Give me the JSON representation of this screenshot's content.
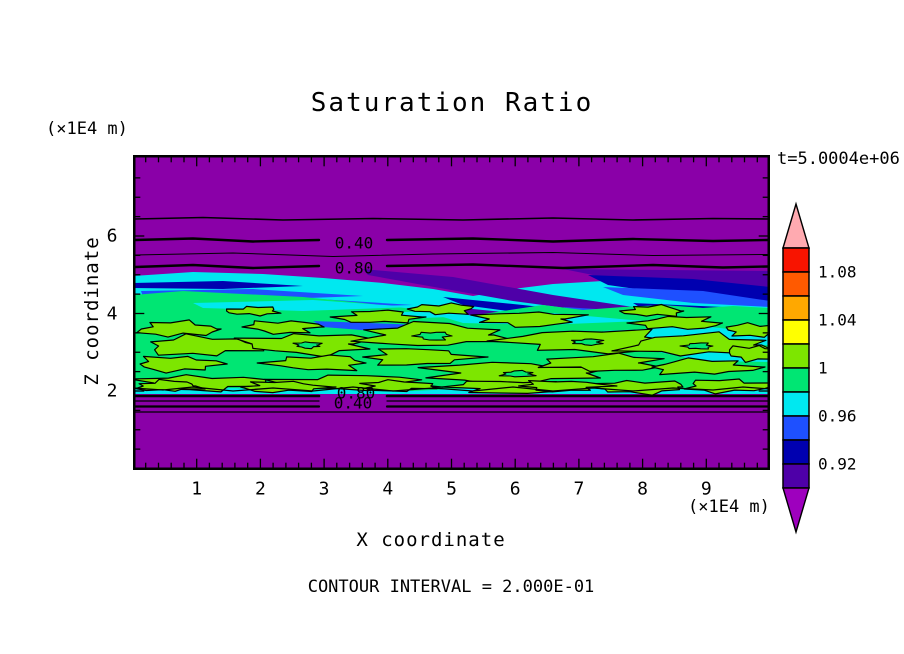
{
  "title": "Saturation Ratio",
  "annotations": {
    "y_axis_units": "(×1E4 m)",
    "x_axis_units": "(×1E4 m)",
    "time_label": "t=5.0004e+06",
    "contour_interval": "CONTOUR INTERVAL = 2.000E-01"
  },
  "x_axis": {
    "label": "X coordinate",
    "ticks": [
      1,
      2,
      3,
      4,
      5,
      6,
      7,
      8,
      9
    ],
    "range": [
      0,
      10
    ]
  },
  "y_axis": {
    "label": "Z coordinate",
    "ticks": [
      2,
      4,
      6
    ],
    "range": [
      0,
      8.1
    ]
  },
  "plot_contour_labels": {
    "upper": [
      {
        "text": "0.40"
      },
      {
        "text": "0.80"
      }
    ],
    "lower": [
      {
        "text": "0.80"
      },
      {
        "text": "0.40"
      }
    ]
  },
  "colorbar": {
    "over_color": "#FFAAB0",
    "under_color": "#9E00BE",
    "segments": [
      {
        "color": "#F81400"
      },
      {
        "color": "#FF5A00"
      },
      {
        "color": "#FFA800"
      },
      {
        "color": "#FFFF00"
      },
      {
        "color": "#7DE600"
      },
      {
        "color": "#00E673"
      },
      {
        "color": "#00E8F0"
      },
      {
        "color": "#1E50FF"
      },
      {
        "color": "#0000B0"
      },
      {
        "color": "#4E00A8"
      }
    ],
    "labels": [
      {
        "text": "1.08",
        "boundary_index": 1
      },
      {
        "text": "1.04",
        "boundary_index": 3
      },
      {
        "text": "1",
        "boundary_index": 5
      },
      {
        "text": "0.96",
        "boundary_index": 7
      },
      {
        "text": "0.92",
        "boundary_index": 9
      }
    ]
  },
  "palette": {
    "background_under": "#8A00A8",
    "violet_0.90_0.92": "#4E00A8",
    "navy_0.92_0.94": "#0000B0",
    "blue_0.94_0.96": "#1E50FF",
    "cyan_0.96_0.98": "#00E8F0",
    "green_0.98_1.00": "#00E673",
    "chartreuse_1.00_1.02": "#7DE600"
  },
  "chart_data": {
    "type": "heatmap",
    "subtype": "filled-contour-plot",
    "title": "Saturation Ratio",
    "xlabel": "X coordinate",
    "ylabel": "Z coordinate",
    "x_units": "×1E4 m",
    "y_units": "×1E4 m",
    "xlim": [
      0,
      10
    ],
    "ylim": [
      0,
      8.1
    ],
    "time_annotation": "t=5.0004e+06",
    "contour_interval_text": "CONTOUR INTERVAL = 2.000E-01",
    "line_contour_interval": 0.2,
    "fill_level_step": 0.02,
    "fill_levels": [
      0.9,
      0.92,
      0.94,
      0.96,
      0.98,
      1.0,
      1.02,
      1.04,
      1.06,
      1.08,
      1.1
    ],
    "colorbar_tick_labels": [
      "1.08",
      "1.04",
      "1",
      "0.96",
      "0.92"
    ],
    "line_contours": [
      {
        "value": 0.2,
        "z_approx": 6.45,
        "labeled": false
      },
      {
        "value": 0.4,
        "z_approx": 5.95,
        "labeled": true
      },
      {
        "value": 0.6,
        "z_approx": 5.55,
        "labeled": false
      },
      {
        "value": 0.8,
        "z_approx": 5.3,
        "labeled": true
      },
      {
        "value": 0.8,
        "z_approx": 1.95,
        "labeled": true
      },
      {
        "value": 0.6,
        "z_approx": 1.83,
        "labeled": false
      },
      {
        "value": 0.4,
        "z_approx": 1.7,
        "labeled": true
      },
      {
        "value": 0.2,
        "z_approx": 1.55,
        "labeled": false
      }
    ],
    "field_description": [
      {
        "z_range": [
          5.3,
          8.1
        ],
        "saturation": "< 0.90 (unsaturated, purple background with 0.2-interval line contours)"
      },
      {
        "z_range": [
          4.7,
          5.3
        ],
        "saturation": "0.90-0.96 (violet/navy/blue transition streaks, thickest on right half)"
      },
      {
        "z_range": [
          4.3,
          5.0
        ],
        "saturation": "0.96-0.98 (cyan wavy band spanning full width)"
      },
      {
        "z_range": [
          2.0,
          4.5
        ],
        "saturation": "0.98-1.02 (green band with many chartreuse >1.0 blobs outlined by the 1.0 contour)"
      },
      {
        "z_range": [
          0.0,
          1.95
        ],
        "saturation": "< 0.90 (unsaturated, purple with overlapping 0.80/0.40 contour labels)"
      }
    ]
  }
}
